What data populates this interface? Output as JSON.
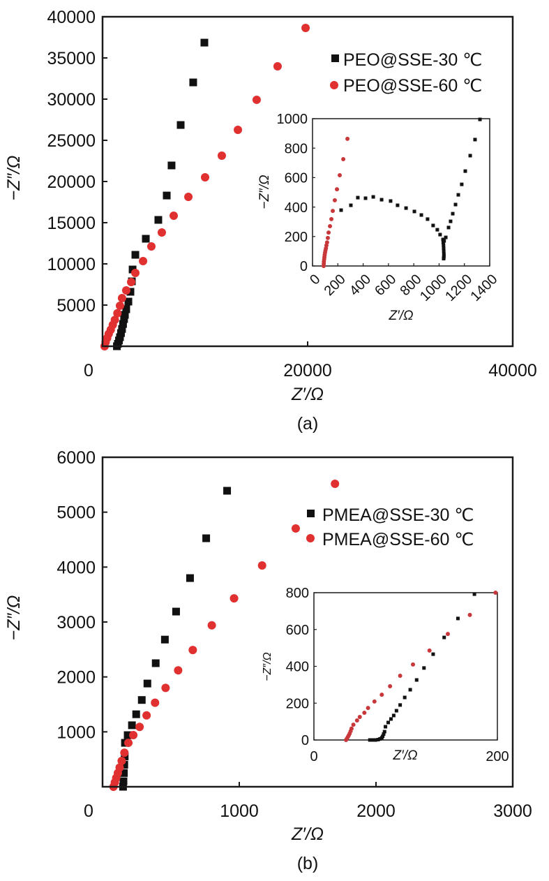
{
  "chart_data": [
    {
      "id": "a",
      "type": "scatter",
      "caption": "(a)",
      "title": "",
      "xlabel": "Z′/Ω",
      "ylabel": "−Z″/Ω",
      "xlim": [
        0,
        40000
      ],
      "ylim": [
        0,
        40000
      ],
      "xticks": [
        0,
        20000,
        40000
      ],
      "xtick_labels": [
        "0",
        "20000",
        "40000"
      ],
      "yticks": [
        5000,
        10000,
        15000,
        20000,
        25000,
        30000,
        35000,
        40000
      ],
      "ytick_labels": [
        "5000",
        "10000",
        "15000",
        "20000",
        "25000",
        "30000",
        "35000",
        "40000"
      ],
      "grid": false,
      "legend_position": "top-right",
      "series": [
        {
          "name": "PEO@SSE-30 ℃",
          "marker": "square",
          "color": "#111111",
          "x": [
            1400,
            1500,
            1600,
            1700,
            1800,
            1900,
            2000,
            2100,
            2180,
            2310,
            2520,
            2720,
            2860,
            2930,
            3200,
            4220,
            5440,
            6260,
            6730,
            7620,
            8840,
            9930
          ],
          "y": [
            0,
            300,
            700,
            1100,
            1600,
            2100,
            2700,
            3300,
            3810,
            4490,
            5420,
            6610,
            7880,
            9320,
            11100,
            13050,
            15340,
            18300,
            21950,
            26860,
            32030,
            36860
          ]
        },
        {
          "name": "PEO@SSE-60 ℃",
          "marker": "circle",
          "color": "#e03030",
          "x": [
            200,
            300,
            450,
            600,
            800,
            1000,
            1200,
            1450,
            1700,
            1900,
            2310,
            2790,
            3200,
            3950,
            4760,
            5780,
            6940,
            8370,
            10000,
            11630,
            13200,
            15030,
            17070,
            19800
          ],
          "y": [
            0,
            500,
            1000,
            1500,
            2000,
            2600,
            3200,
            4000,
            4920,
            5850,
            6780,
            7800,
            8900,
            10340,
            12120,
            13810,
            15850,
            18140,
            20510,
            23140,
            26270,
            29920,
            33980,
            38640
          ]
        }
      ],
      "inset": {
        "type": "scatter",
        "xlabel": "Z′/Ω",
        "ylabel": "−Z″/Ω",
        "xlim": [
          0,
          1400
        ],
        "ylim": [
          0,
          1000
        ],
        "xticks": [
          0,
          200,
          400,
          600,
          800,
          1000,
          1200,
          1400
        ],
        "xtick_labels": [
          "0",
          "200",
          "400",
          "600",
          "800",
          "1000",
          "1200",
          "1400"
        ],
        "yticks": [
          0,
          200,
          400,
          600,
          800,
          1000
        ],
        "ytick_labels": [
          "0",
          "200",
          "400",
          "600",
          "800",
          "1000"
        ],
        "series": [
          {
            "name": "PEO@SSE-30 ℃",
            "marker": "square",
            "color": "#111111",
            "x": [
              226,
              303,
              358,
              419,
              480,
              546,
              617,
              672,
              739,
              805,
              860,
              909,
              953,
              986,
              1008,
              1031,
              1033,
              1035,
              1036,
              1037,
              1038,
              1038,
              1037,
              1036,
              1040,
              1053,
              1075,
              1091,
              1108,
              1130,
              1152,
              1179,
              1207,
              1246,
              1284,
              1323
            ],
            "y": [
              379,
              412,
              464,
              460,
              469,
              450,
              441,
              412,
              393,
              370,
              346,
              318,
              275,
              246,
              213,
              180,
              160,
              140,
              120,
              100,
              80,
              65,
              55,
              50,
              170,
              194,
              261,
              303,
              355,
              417,
              483,
              554,
              644,
              749,
              858,
              995
            ]
          },
          {
            "name": "PEO@SSE-60 ℃",
            "marker": "circle",
            "color": "#c8383a",
            "x": [
              88,
              89,
              90,
              92,
              94,
              96,
              99,
              102,
              106,
              110,
              115,
              121,
              127,
              138,
              149,
              160,
              176,
              193,
              215,
              243,
              276
            ],
            "y": [
              0,
              15,
              30,
              45,
              60,
              75,
              90,
              105,
              120,
              140,
              160,
              190,
              227,
              270,
              318,
              374,
              446,
              521,
              616,
              725,
              863
            ]
          }
        ]
      }
    },
    {
      "id": "b",
      "type": "scatter",
      "caption": "(b)",
      "title": "",
      "xlabel": "Z′/Ω",
      "ylabel": "−Z″/Ω",
      "xlim": [
        0,
        3000
      ],
      "ylim": [
        0,
        6000
      ],
      "xticks": [
        0,
        1000,
        2000,
        3000
      ],
      "xtick_labels": [
        "0",
        "1000",
        "2000",
        "3000"
      ],
      "yticks": [
        1000,
        2000,
        3000,
        4000,
        5000,
        6000
      ],
      "ytick_labels": [
        "1000",
        "2000",
        "3000",
        "4000",
        "5000",
        "6000"
      ],
      "grid": false,
      "legend_position": "top-right",
      "series": [
        {
          "name": "PMEA@SSE-30 ℃",
          "marker": "square",
          "color": "#111111",
          "x": [
            150,
            153,
            156,
            159,
            162,
            164,
            184,
            215,
            246,
            287,
            328,
            389,
            456,
            538,
            640,
            758,
            911
          ],
          "y": [
            0,
            100,
            250,
            400,
            550,
            800,
            940,
            1120,
            1320,
            1580,
            1880,
            2250,
            2680,
            3190,
            3800,
            4525,
            5390
          ]
        },
        {
          "name": "PMEA@SSE-60 ℃",
          "marker": "circle",
          "color": "#e03030",
          "x": [
            80,
            90,
            100,
            112,
            125,
            140,
            160,
            189,
            225,
            271,
            322,
            384,
            461,
            553,
            660,
            799,
            962,
            1167,
            1413,
            1700
          ],
          "y": [
            0,
            80,
            160,
            250,
            350,
            470,
            620,
            800,
            940,
            1090,
            1300,
            1530,
            1800,
            2120,
            2490,
            2940,
            3430,
            4030,
            4704,
            5517
          ]
        }
      ],
      "inset": {
        "type": "scatter",
        "xlabel": "Z′/Ω",
        "ylabel": "−Z″/Ω",
        "xlim": [
          0,
          200
        ],
        "ylim": [
          0,
          800
        ],
        "xticks": [
          0,
          200
        ],
        "xtick_labels": [
          "0",
          "200"
        ],
        "yticks": [
          0,
          200,
          400,
          600,
          800
        ],
        "ytick_labels": [
          "0",
          "200",
          "400",
          "600",
          "800"
        ],
        "series": [
          {
            "name": "PMEA@SSE-30 ℃",
            "marker": "square",
            "color": "#111111",
            "x": [
              61,
              64,
              67,
              70,
              72,
              74,
              75,
              76,
              77,
              78,
              81,
              84,
              87,
              90,
              94,
              99,
              105,
              112,
              120,
              130,
              142,
              157,
              175
            ],
            "y": [
              0,
              0,
              0,
              2,
              6,
              12,
              20,
              32,
              45,
              72,
              95,
              114,
              133,
              159,
              190,
              231,
              273,
              326,
              391,
              466,
              557,
              660,
              792
            ]
          },
          {
            "name": "PMEA@SSE-60 ℃",
            "marker": "circle",
            "color": "#c8383a",
            "x": [
              35,
              36,
              37,
              38,
              39,
              40,
              41,
              43,
              47,
              50,
              55,
              59,
              66,
              74,
              83,
              94,
              108,
              126,
              146,
              170,
              198
            ],
            "y": [
              0,
              8,
              16,
              25,
              35,
              48,
              62,
              83,
              106,
              125,
              148,
              174,
              209,
              246,
              292,
              349,
              410,
              486,
              576,
              679,
              800
            ]
          }
        ]
      }
    }
  ]
}
